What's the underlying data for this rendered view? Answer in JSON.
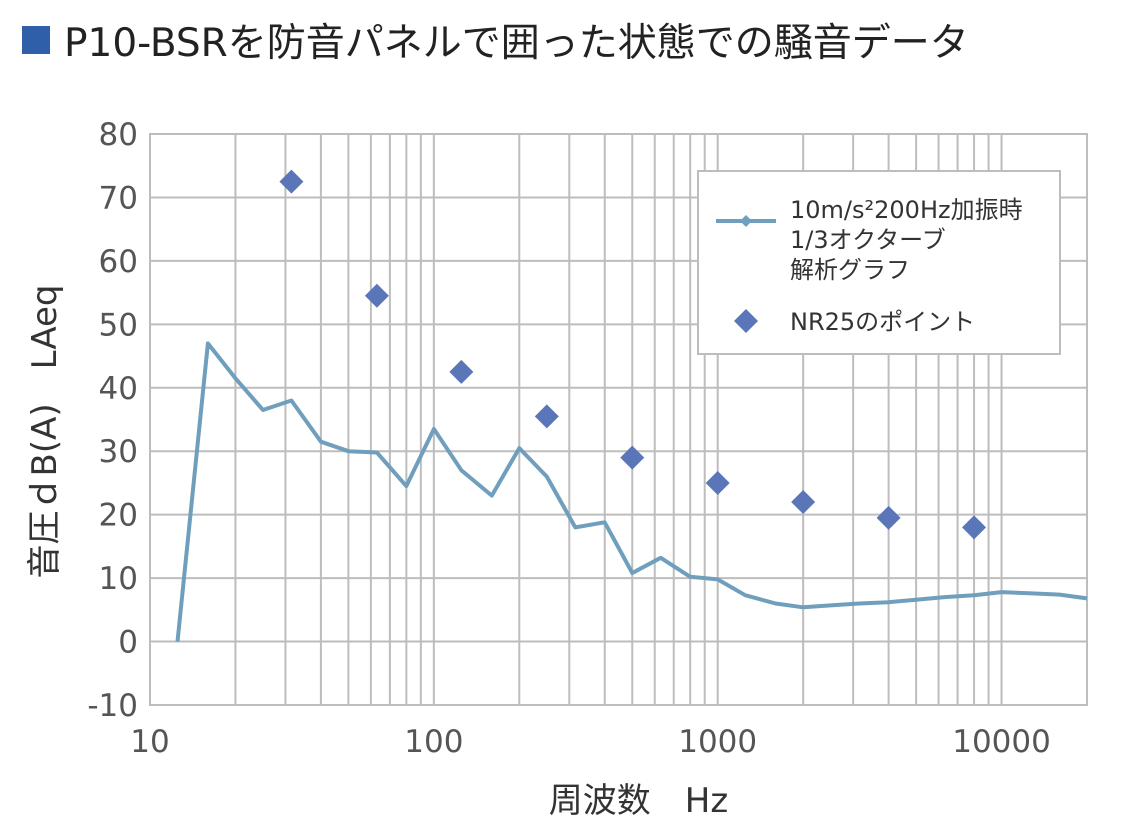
{
  "title": "P10-BSRを防音パネルで囲った状態での騒音データ",
  "chart_data": {
    "type": "line",
    "title": "P10-BSRを防音パネルで囲った状態での騒音データ",
    "xlabel": "周波数　Hz",
    "ylabel": "音圧ｄB(A)　LAeq",
    "x_scale": "log",
    "xlim": [
      10,
      20000
    ],
    "ylim": [
      -10,
      80
    ],
    "grid": true,
    "legend_position": "top-right",
    "y_ticks": [
      -10,
      0,
      10,
      20,
      30,
      40,
      50,
      60,
      70,
      80
    ],
    "y_tick_labels": [
      "-10",
      "0",
      "10",
      "20",
      "30",
      "40",
      "50",
      "60",
      "70",
      "80"
    ],
    "x_ticks": [
      10,
      100,
      1000,
      10000
    ],
    "x_tick_labels": [
      "10",
      "100",
      "1000",
      "10000"
    ],
    "series": [
      {
        "name": "10m/s²200Hz加振時 1/3オクターブ 解析グラフ",
        "legend_lines": [
          "10m/s²200Hz加振時",
          "1/3オクターブ",
          "解析グラフ"
        ],
        "type": "line",
        "color": "#6f9fbc",
        "x": [
          12.5,
          16,
          20,
          25,
          31.5,
          40,
          50,
          63,
          80,
          100,
          125,
          160,
          200,
          250,
          315,
          400,
          500,
          630,
          800,
          1000,
          1250,
          1600,
          2000,
          2500,
          3150,
          4000,
          5000,
          6300,
          8000,
          10000,
          12500,
          16000,
          20000
        ],
        "y": [
          0,
          47,
          41.5,
          36.5,
          38,
          31.5,
          30,
          29.8,
          24.5,
          33.5,
          27,
          23,
          30.5,
          26,
          18,
          18.8,
          10.8,
          13.2,
          10.2,
          9.8,
          7.3,
          6,
          5.4,
          5.7,
          6,
          6.2,
          6.6,
          7,
          7.3,
          7.8,
          7.6,
          7.4,
          6.8
        ]
      },
      {
        "name": "NR25のポイント",
        "legend_lines": [
          "NR25のポイント"
        ],
        "type": "scatter",
        "marker": "diamond",
        "color": "#5a76b8",
        "x": [
          31.5,
          63,
          125,
          250,
          500,
          1000,
          2000,
          4000,
          8000
        ],
        "y": [
          72.5,
          54.5,
          42.5,
          35.5,
          29,
          25,
          22,
          19.5,
          18
        ]
      }
    ]
  }
}
